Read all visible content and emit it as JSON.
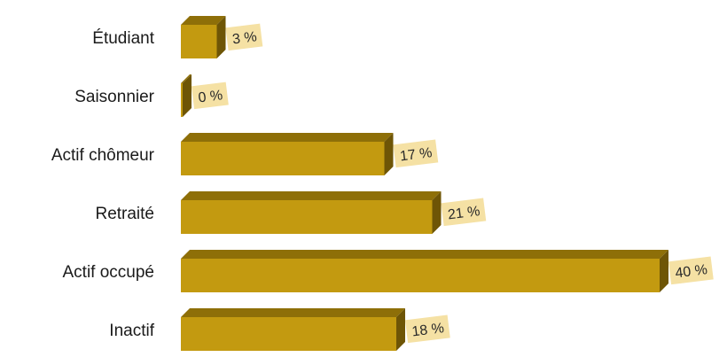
{
  "chart_data": {
    "type": "bar",
    "orientation": "horizontal",
    "style": "3d",
    "categories": [
      "Étudiant",
      "Saisonnier",
      "Actif chômeur",
      "Retraité",
      "Actif occupé",
      "Inactif"
    ],
    "values": [
      3,
      0,
      17,
      21,
      40,
      18
    ],
    "value_labels": [
      "3 %",
      "0 %",
      "17 %",
      "21 %",
      "40 %",
      "18 %"
    ],
    "unit": "%",
    "xlim": [
      0,
      40
    ],
    "grid": false,
    "legend": "none",
    "colors": {
      "bar_front": "#c39a10",
      "bar_top": "#8e6f08",
      "bar_side": "#6e5506",
      "label_bg": "#f5e1a4"
    }
  }
}
